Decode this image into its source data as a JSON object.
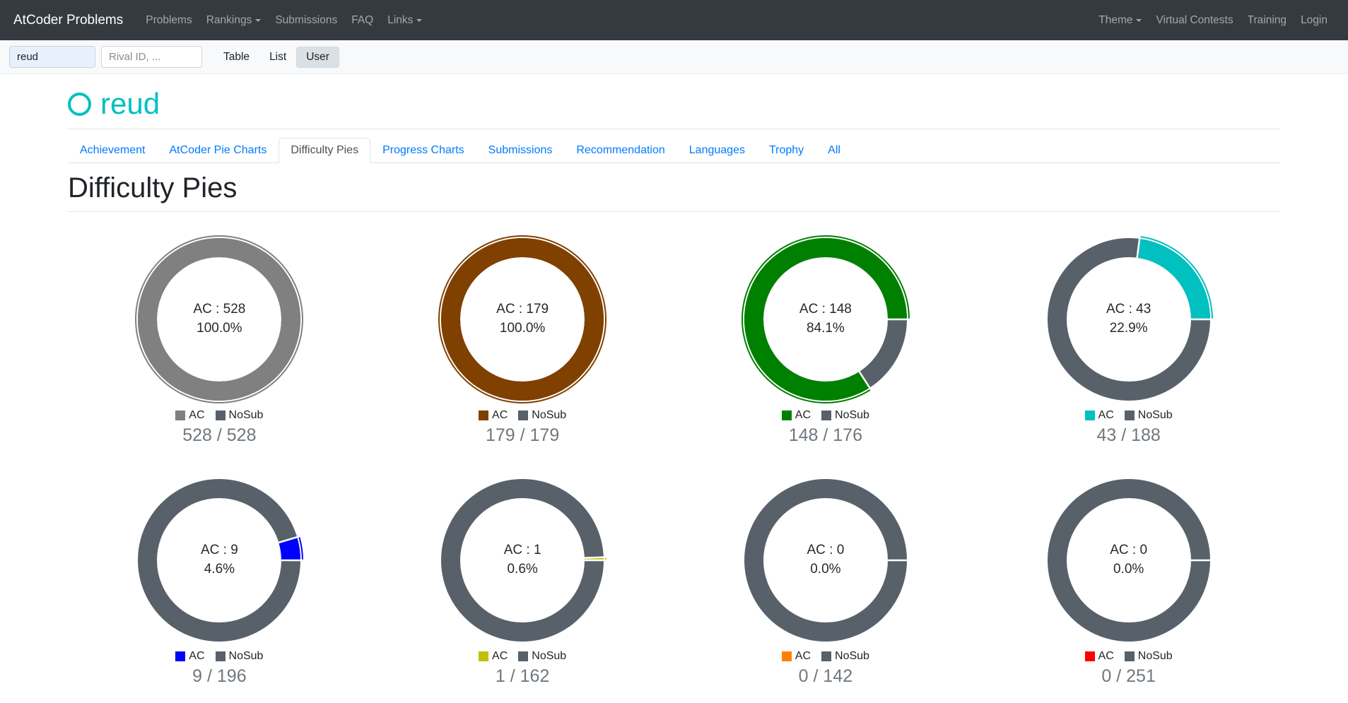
{
  "navbar": {
    "brand": "AtCoder Problems",
    "left": [
      {
        "label": "Problems",
        "caret": false
      },
      {
        "label": "Rankings",
        "caret": true
      },
      {
        "label": "Submissions",
        "caret": false
      },
      {
        "label": "FAQ",
        "caret": false
      },
      {
        "label": "Links",
        "caret": true
      }
    ],
    "right": [
      {
        "label": "Theme",
        "caret": true
      },
      {
        "label": "Virtual Contests",
        "caret": false
      },
      {
        "label": "Training",
        "caret": false
      },
      {
        "label": "Login",
        "caret": false
      }
    ]
  },
  "toolbar": {
    "user_value": "reud",
    "rival_placeholder": "Rival ID, ...",
    "table_label": "Table",
    "list_label": "List",
    "user_label": "User",
    "active_button": "User"
  },
  "user": {
    "name": "reud",
    "rating_color": "#00C0C0"
  },
  "tabs": [
    {
      "label": "Achievement",
      "active": false
    },
    {
      "label": "AtCoder Pie Charts",
      "active": false
    },
    {
      "label": "Difficulty Pies",
      "active": true
    },
    {
      "label": "Progress Charts",
      "active": false
    },
    {
      "label": "Submissions",
      "active": false
    },
    {
      "label": "Recommendation",
      "active": false
    },
    {
      "label": "Languages",
      "active": false
    },
    {
      "label": "Trophy",
      "active": false
    },
    {
      "label": "All",
      "active": false
    }
  ],
  "heading": "Difficulty Pies",
  "colors": {
    "nosub": "#58616A",
    "link": "#007bff"
  },
  "legend_ac_label": "AC",
  "legend_nosub_label": "NoSub",
  "chart_data": {
    "type": "pie",
    "note": "eight donut charts: AC vs NoSub per difficulty",
    "series_labels": [
      "AC",
      "NoSub"
    ]
  },
  "pies": [
    {
      "color": "#808080",
      "ac": 528,
      "total": 528,
      "ac_percent": 100.0,
      "center_line1": "AC : 528",
      "center_line2": "100.0%",
      "caption": "528 / 528"
    },
    {
      "color": "#804000",
      "ac": 179,
      "total": 179,
      "ac_percent": 100.0,
      "center_line1": "AC : 179",
      "center_line2": "100.0%",
      "caption": "179 / 179"
    },
    {
      "color": "#008000",
      "ac": 148,
      "total": 176,
      "ac_percent": 84.1,
      "center_line1": "AC : 148",
      "center_line2": "84.1%",
      "caption": "148 / 176"
    },
    {
      "color": "#00C0C0",
      "ac": 43,
      "total": 188,
      "ac_percent": 22.9,
      "center_line1": "AC : 43",
      "center_line2": "22.9%",
      "caption": "43 / 188"
    },
    {
      "color": "#0000FF",
      "ac": 9,
      "total": 196,
      "ac_percent": 4.6,
      "center_line1": "AC : 9",
      "center_line2": "4.6%",
      "caption": "9 / 196"
    },
    {
      "color": "#C0C000",
      "ac": 1,
      "total": 162,
      "ac_percent": 0.6,
      "center_line1": "AC : 1",
      "center_line2": "0.6%",
      "caption": "1 / 162"
    },
    {
      "color": "#FF8000",
      "ac": 0,
      "total": 142,
      "ac_percent": 0.0,
      "center_line1": "AC : 0",
      "center_line2": "0.0%",
      "caption": "0 / 142"
    },
    {
      "color": "#FF0000",
      "ac": 0,
      "total": 251,
      "ac_percent": 0.0,
      "center_line1": "AC : 0",
      "center_line2": "0.0%",
      "caption": "0 / 251"
    }
  ]
}
